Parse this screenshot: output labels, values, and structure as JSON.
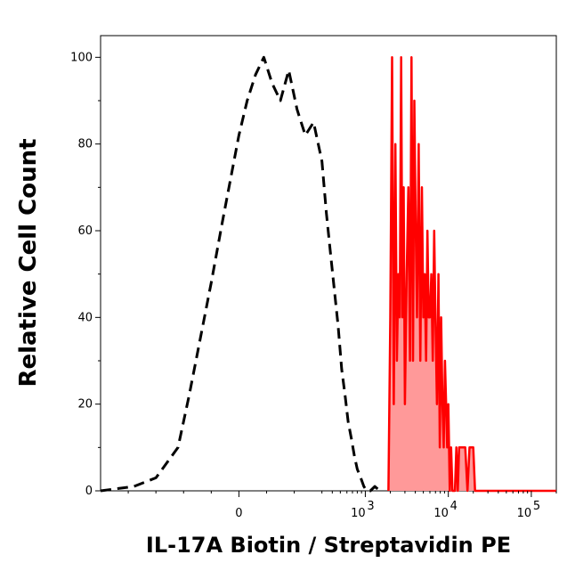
{
  "chart_data": {
    "type": "area",
    "title": "",
    "xlabel": "IL-17A Biotin / Streptavidin PE",
    "ylabel": "Relative Cell Count",
    "x_scale": "logicle",
    "xlim": [
      -500,
      200000
    ],
    "ylim": [
      0,
      105
    ],
    "grid": false,
    "legend": "none",
    "y_ticks": [
      {
        "value": 0,
        "label": "0"
      },
      {
        "value": 20,
        "label": "20"
      },
      {
        "value": 40,
        "label": "40"
      },
      {
        "value": 60,
        "label": "60"
      },
      {
        "value": 80,
        "label": "80"
      },
      {
        "value": 100,
        "label": "100"
      }
    ],
    "x_ticks": [
      {
        "value": 0,
        "base": "0",
        "exp": ""
      },
      {
        "value": 1000,
        "base": "10",
        "exp": "3"
      },
      {
        "value": 10000,
        "base": "10",
        "exp": "4"
      },
      {
        "value": 100000,
        "base": "10",
        "exp": "5"
      }
    ],
    "series": [
      {
        "style": "dashed",
        "color": "#000000",
        "filled": false,
        "x": [
          -500,
          -380,
          -300,
          -220,
          -180,
          -140,
          -100,
          -60,
          -30,
          0,
          30,
          60,
          90,
          120,
          150,
          180,
          210,
          240,
          270,
          300,
          340,
          380,
          420,
          470,
          520,
          570,
          620,
          680,
          740,
          800,
          880,
          960,
          1040,
          1150,
          1300,
          1500
        ],
        "y": [
          0,
          1,
          3,
          10,
          22,
          35,
          48,
          62,
          72,
          82,
          90,
          96,
          100,
          94,
          90,
          97,
          88,
          82,
          85,
          76,
          64,
          55,
          47,
          38,
          28,
          22,
          16,
          12,
          8,
          5,
          3,
          1,
          0,
          0,
          1,
          0
        ]
      },
      {
        "style": "solid",
        "color": "#ff0000",
        "fill": "#ff9999",
        "filled": true,
        "x": [
          1900,
          2000,
          2100,
          2200,
          2300,
          2400,
          2500,
          2600,
          2700,
          2800,
          2900,
          3000,
          3150,
          3300,
          3450,
          3600,
          3750,
          3900,
          4050,
          4200,
          4400,
          4600,
          4800,
          5000,
          5200,
          5400,
          5600,
          5800,
          6000,
          6250,
          6500,
          6750,
          7000,
          7300,
          7600,
          7900,
          8200,
          8500,
          8800,
          9100,
          9400,
          9700,
          10000,
          10400,
          10800,
          11200,
          11600,
          12000,
          12500,
          13000,
          13500,
          14000,
          14500,
          15000,
          16000,
          17000,
          18000,
          19000,
          20000,
          21000,
          22000,
          23000,
          24000,
          26000,
          30000,
          40000,
          60000,
          100000,
          150000,
          200000
        ],
        "y": [
          0,
          40,
          100,
          20,
          80,
          30,
          50,
          40,
          100,
          40,
          70,
          20,
          50,
          70,
          30,
          100,
          30,
          90,
          60,
          40,
          80,
          30,
          70,
          40,
          50,
          30,
          60,
          40,
          40,
          50,
          30,
          60,
          40,
          20,
          50,
          10,
          40,
          20,
          10,
          30,
          20,
          10,
          20,
          0,
          10,
          0,
          0,
          0,
          10,
          0,
          10,
          10,
          10,
          10,
          10,
          0,
          10,
          10,
          10,
          0,
          0,
          0,
          0,
          0,
          0,
          0,
          0,
          0,
          0,
          0
        ]
      }
    ]
  }
}
